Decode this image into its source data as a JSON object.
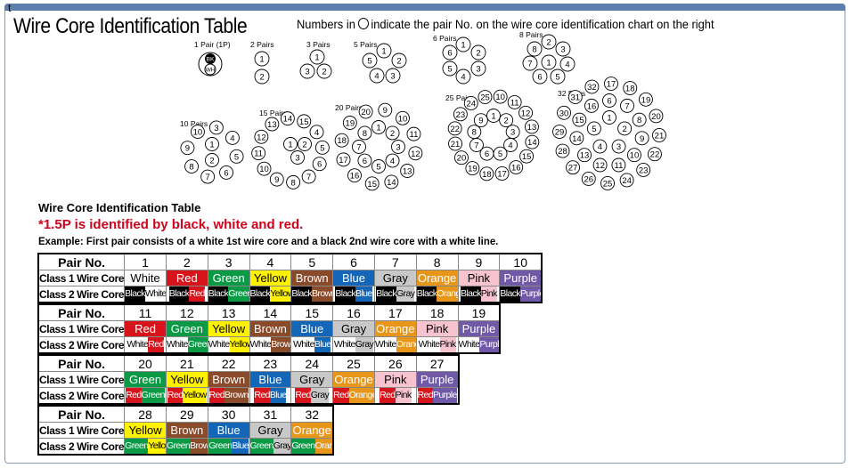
{
  "corner_mark": "t",
  "title": "Wire Core Identification Table",
  "note": {
    "before": "Numbers in",
    "after": "indicate the pair No. on the wire core identification chart on the right"
  },
  "diagram_labels": [
    "1 Pair (1P)",
    "2 Pairs",
    "3 Pairs",
    "5 Pairs",
    "6 Pairs",
    "8 Pairs",
    "10 Pairs",
    "15 Pairs",
    "20 Pairs",
    "25 Pairs",
    "32 Pairs"
  ],
  "one_pair_cores": [
    "BK",
    "WH"
  ],
  "table_heading": "Wire Core Identification Table",
  "special_note": "*1.5P is identified by black, white and red.",
  "example": "Example: First pair consists of a white 1st wire core and a black 2nd wire core with a white line.",
  "row_labels": {
    "pair": "Pair No.",
    "class1": "Class 1 Wire Core",
    "class2": "Class 2 Wire Core"
  },
  "colors": {
    "White": "#ffffff",
    "Red": "#d7141c",
    "Green": "#0a9a46",
    "Yellow": "#fff200",
    "Brown": "#8a4b2a",
    "Blue": "#1466b8",
    "Gray": "#c8c8c8",
    "Orange": "#e8961a",
    "Pink": "#f7c3cf",
    "Purple": "#7059a6",
    "Black": "#000000"
  },
  "blocks": [
    {
      "pairs": [
        {
          "no": "1",
          "c1": "White",
          "c2": [
            "Black",
            "White"
          ]
        },
        {
          "no": "2",
          "c1": "Red",
          "c2": [
            "Black",
            "Red"
          ]
        },
        {
          "no": "3",
          "c1": "Green",
          "c2": [
            "Black",
            "Green"
          ]
        },
        {
          "no": "4",
          "c1": "Yellow",
          "c2": [
            "Black",
            "Yellow"
          ]
        },
        {
          "no": "5",
          "c1": "Brown",
          "c2": [
            "Black",
            "Brown"
          ]
        },
        {
          "no": "6",
          "c1": "Blue",
          "c2": [
            "Black",
            "Blue"
          ]
        },
        {
          "no": "7",
          "c1": "Gray",
          "c2": [
            "Black",
            "Gray"
          ]
        },
        {
          "no": "8",
          "c1": "Orange",
          "c2": [
            "Black",
            "Orange"
          ]
        },
        {
          "no": "9",
          "c1": "Pink",
          "c2": [
            "Black",
            "Pink"
          ]
        },
        {
          "no": "10",
          "c1": "Purple",
          "c2": [
            "Black",
            "Purple"
          ]
        }
      ]
    },
    {
      "pairs": [
        {
          "no": "11",
          "c1": "Red",
          "c2": [
            "White",
            "Red"
          ]
        },
        {
          "no": "12",
          "c1": "Green",
          "c2": [
            "White",
            "Green"
          ]
        },
        {
          "no": "13",
          "c1": "Yellow",
          "c2": [
            "White",
            "Yellow"
          ]
        },
        {
          "no": "14",
          "c1": "Brown",
          "c2": [
            "White",
            "Brown"
          ]
        },
        {
          "no": "15",
          "c1": "Blue",
          "c2": [
            "White",
            "Blue"
          ]
        },
        {
          "no": "16",
          "c1": "Gray",
          "c2": [
            "White",
            "Gray"
          ]
        },
        {
          "no": "17",
          "c1": "Orange",
          "c2": [
            "White",
            "Orange"
          ]
        },
        {
          "no": "18",
          "c1": "Pink",
          "c2": [
            "White",
            "Pink"
          ]
        },
        {
          "no": "19",
          "c1": "Purple",
          "c2": [
            "White",
            "Purple"
          ]
        }
      ]
    },
    {
      "pairs": [
        {
          "no": "20",
          "c1": "Green",
          "c2": [
            "Red",
            "Green"
          ]
        },
        {
          "no": "21",
          "c1": "Yellow",
          "c2": [
            "Red",
            "Yellow"
          ]
        },
        {
          "no": "22",
          "c1": "Brown",
          "c2": [
            "Red",
            "Brown"
          ]
        },
        {
          "no": "23",
          "c1": "Blue",
          "c2": [
            "Red",
            "Blue"
          ]
        },
        {
          "no": "24",
          "c1": "Gray",
          "c2": [
            "Red",
            "Gray"
          ]
        },
        {
          "no": "25",
          "c1": "Orange",
          "c2": [
            "Red",
            "Orange"
          ]
        },
        {
          "no": "26",
          "c1": "Pink",
          "c2": [
            "Red",
            "Pink"
          ]
        },
        {
          "no": "27",
          "c1": "Purple",
          "c2": [
            "Red",
            "Purple"
          ]
        }
      ]
    },
    {
      "pairs": [
        {
          "no": "28",
          "c1": "Yellow",
          "c2": [
            "Green",
            "Yellow"
          ]
        },
        {
          "no": "29",
          "c1": "Brown",
          "c2": [
            "Green",
            "Brown"
          ]
        },
        {
          "no": "30",
          "c1": "Blue",
          "c2": [
            "Green",
            "Blue"
          ]
        },
        {
          "no": "31",
          "c1": "Gray",
          "c2": [
            "Green",
            "Gray"
          ]
        },
        {
          "no": "32",
          "c1": "Orange",
          "c2": [
            "Green",
            "Orange"
          ]
        }
      ]
    }
  ]
}
